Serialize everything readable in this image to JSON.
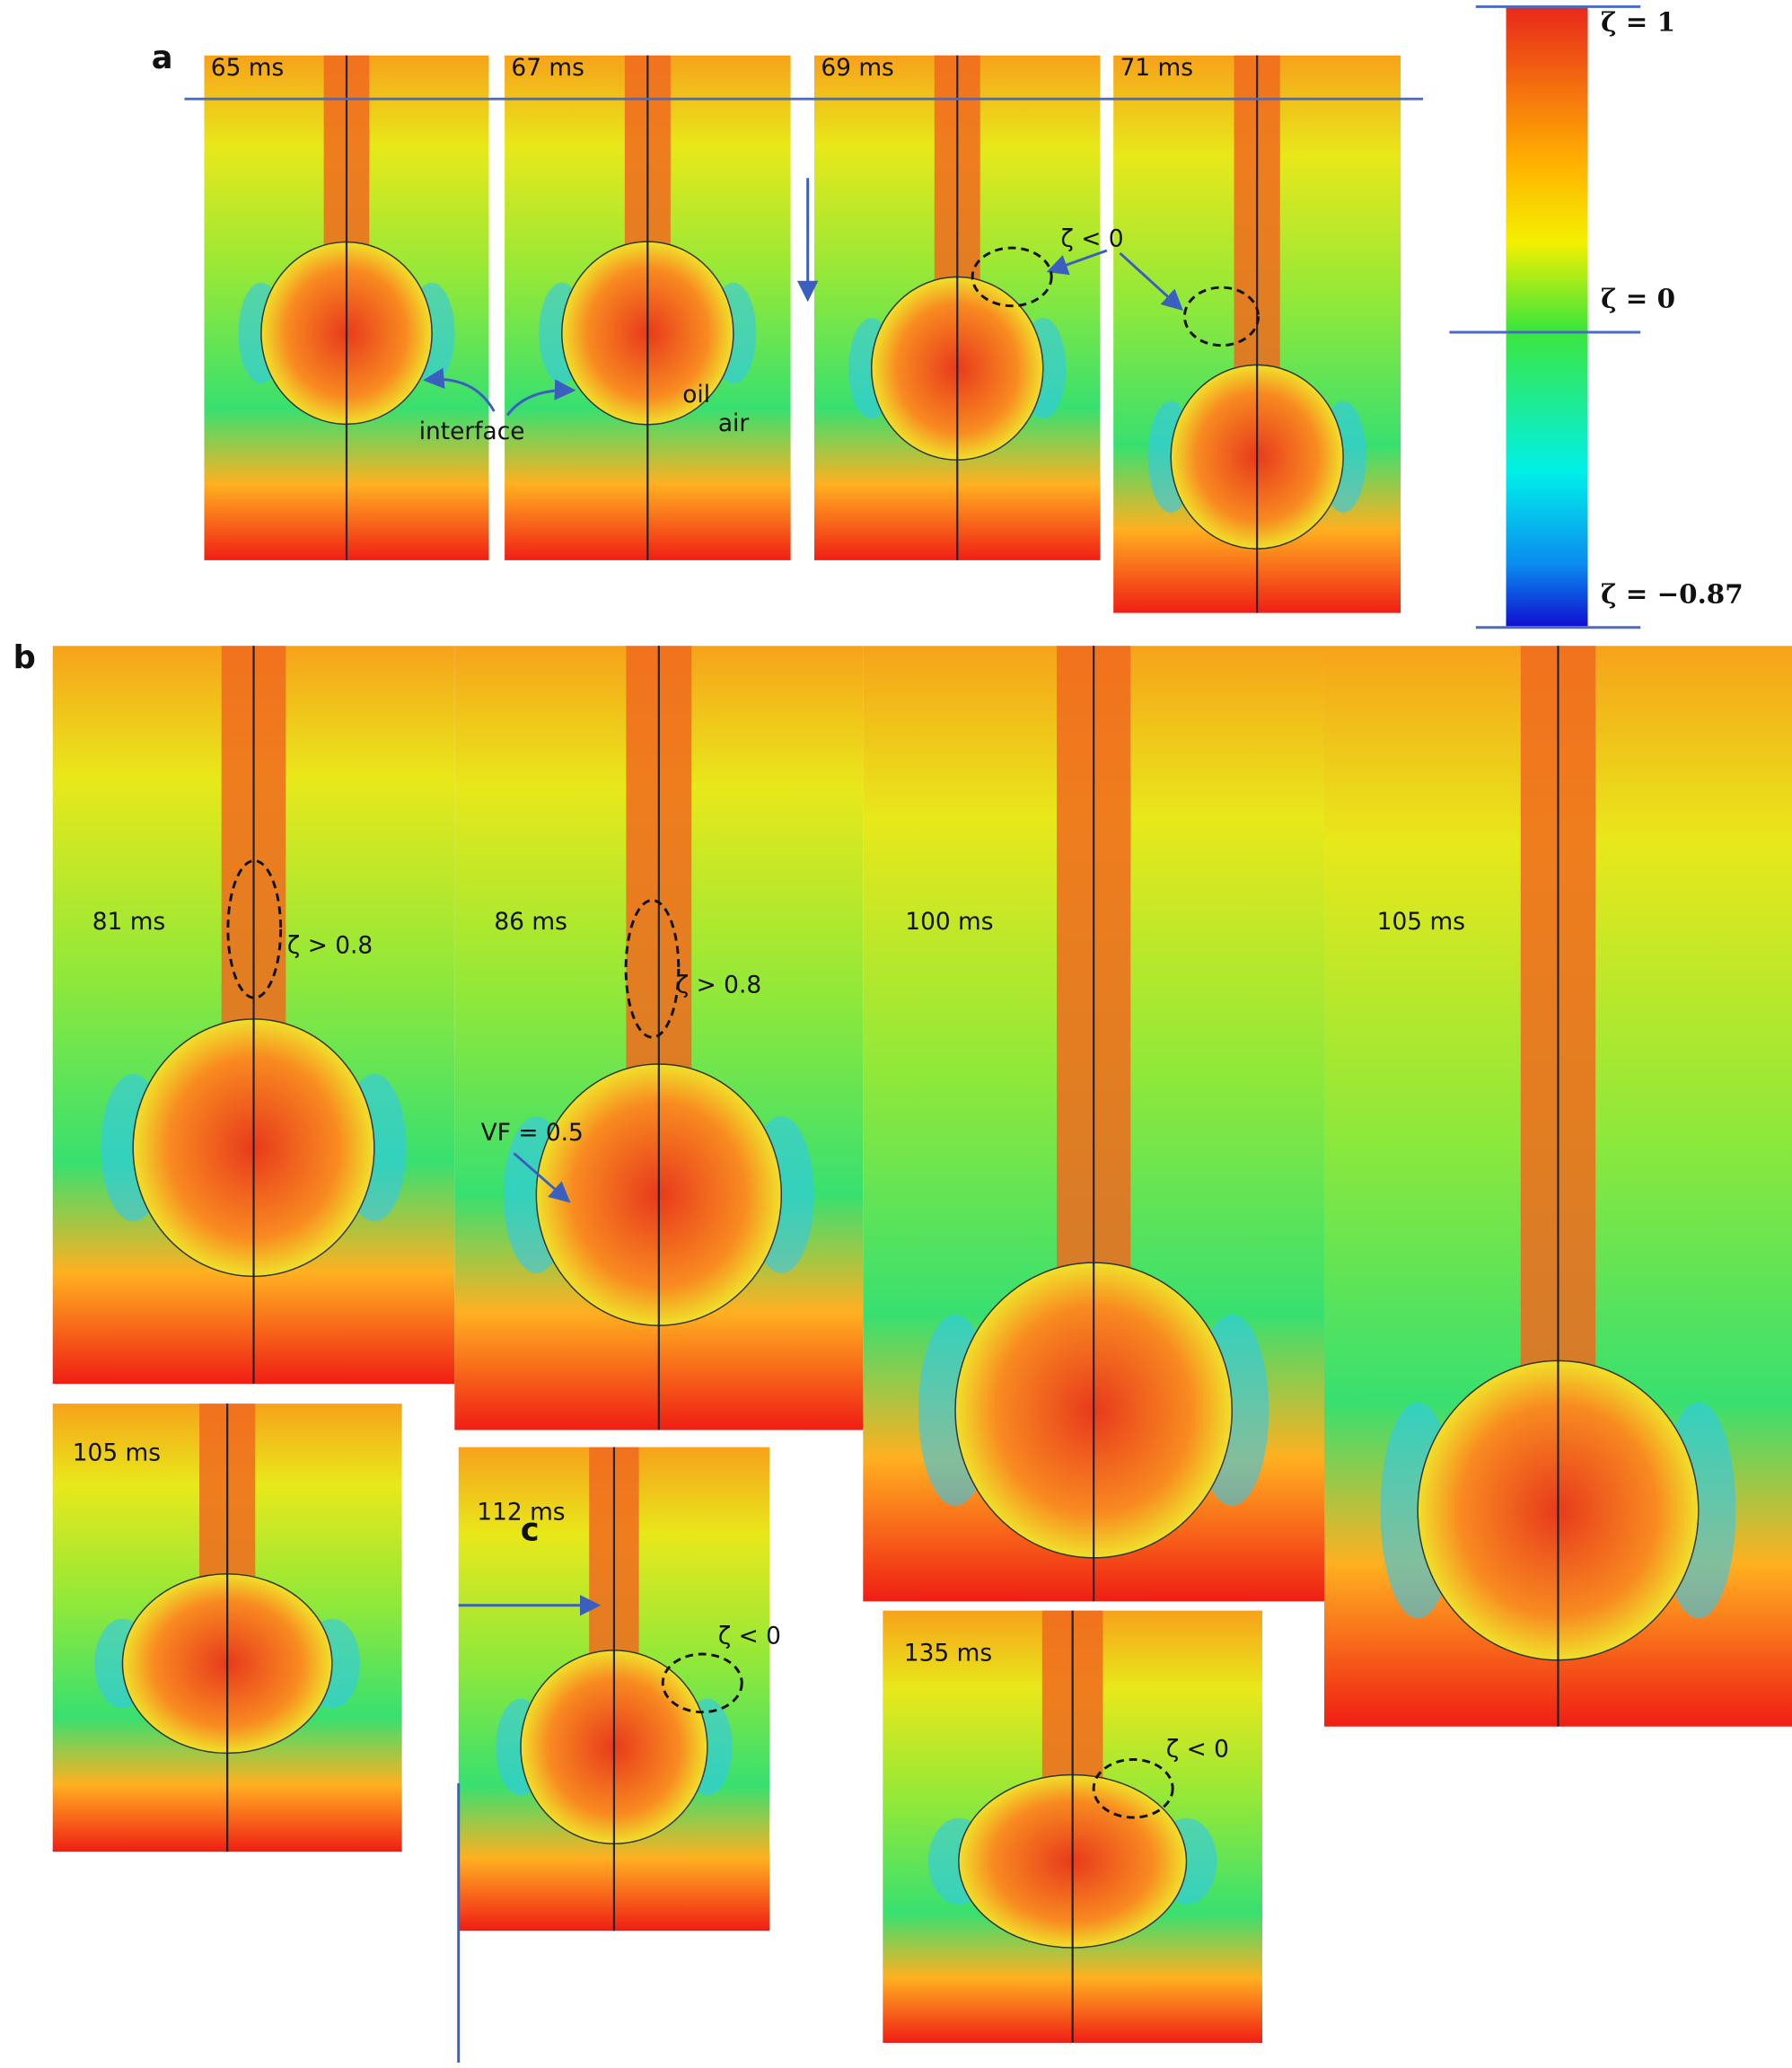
{
  "panels": {
    "a": {
      "label": "a",
      "frames": [
        "65 ms",
        "67 ms",
        "69 ms",
        "71 ms"
      ],
      "annotations": [
        "interface",
        "oil",
        "air",
        "ζ < 0"
      ]
    },
    "b": {
      "label": "b",
      "frames": [
        "81 ms",
        "86 ms",
        "100 ms",
        "105 ms"
      ],
      "annotations": [
        "ζ > 0.8",
        "ζ > 0.8",
        "VF = 0.5"
      ]
    },
    "c": {
      "label": "c",
      "frames": [
        "105 ms",
        "112 ms",
        "135 ms"
      ],
      "annotations": [
        "ζ < 0",
        "ζ < 0"
      ]
    }
  },
  "colorbar": {
    "labels": [
      "ζ = 1",
      "ζ = 0",
      "ζ = −0.87"
    ]
  }
}
